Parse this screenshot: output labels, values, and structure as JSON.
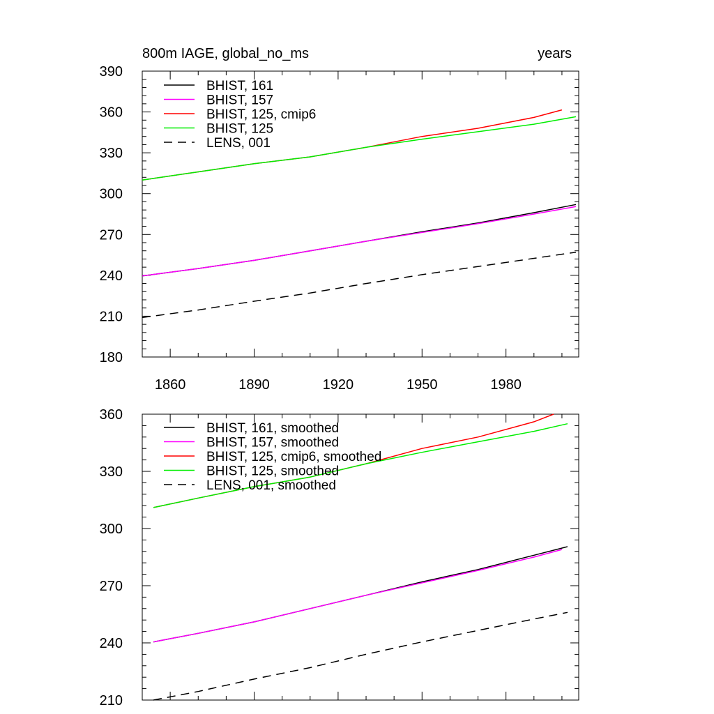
{
  "title_left": "800m IAGE, global_no_ms",
  "title_right": "years",
  "chart_data": [
    {
      "type": "line",
      "title": "800m IAGE, global_no_ms",
      "units": "years",
      "xlim": [
        1850,
        2006
      ],
      "ylim": [
        180,
        390
      ],
      "xticks": [
        1860,
        1890,
        1920,
        1950,
        1980
      ],
      "yticks": [
        180,
        210,
        240,
        270,
        300,
        330,
        360,
        390
      ],
      "x_tick_labels_shown": true,
      "legend_position": "top-left",
      "series": [
        {
          "name": "BHIST, 161",
          "color": "#000000",
          "dash": "solid",
          "x": [
            1850,
            1870,
            1890,
            1910,
            1930,
            1950,
            1970,
            1990,
            2005
          ],
          "values": [
            239.5,
            245,
            251,
            258,
            265,
            272,
            278.5,
            286,
            292
          ]
        },
        {
          "name": "BHIST, 157",
          "color": "#ff00ff",
          "dash": "solid",
          "x": [
            1850,
            1870,
            1890,
            1910,
            1930,
            1950,
            1970,
            1990,
            2005
          ],
          "values": [
            239.5,
            245,
            251,
            258,
            265,
            271.5,
            278,
            285,
            290.5
          ]
        },
        {
          "name": "BHIST, 125, cmip6",
          "color": "#ff0000",
          "dash": "solid",
          "x": [
            1850,
            1870,
            1890,
            1910,
            1930,
            1950,
            1970,
            1990,
            2000
          ],
          "values": [
            310,
            316,
            322,
            327,
            334,
            342,
            348,
            356,
            361.5
          ]
        },
        {
          "name": "BHIST, 125",
          "color": "#00ee00",
          "dash": "solid",
          "x": [
            1850,
            1870,
            1890,
            1910,
            1930,
            1950,
            1970,
            1990,
            2005
          ],
          "values": [
            310,
            316,
            322,
            327,
            334,
            340,
            345.5,
            351,
            356.5
          ]
        },
        {
          "name": "LENS, 001",
          "color": "#000000",
          "dash": "dashed",
          "x": [
            1850,
            1870,
            1890,
            1910,
            1930,
            1950,
            1970,
            1990,
            2005
          ],
          "values": [
            209,
            214.5,
            221,
            227,
            234,
            240.5,
            246.5,
            252.5,
            257
          ]
        }
      ]
    },
    {
      "type": "line",
      "title": "",
      "units": "",
      "xlim": [
        1850,
        2006
      ],
      "ylim": [
        210,
        360
      ],
      "xticks": [
        1860,
        1890,
        1920,
        1950,
        1980
      ],
      "yticks": [
        210,
        240,
        270,
        300,
        330,
        360
      ],
      "x_tick_labels_shown": false,
      "legend_position": "top-left",
      "series": [
        {
          "name": "BHIST, 161, smoothed",
          "color": "#000000",
          "dash": "solid",
          "x": [
            1854,
            1870,
            1890,
            1910,
            1930,
            1950,
            1970,
            1990,
            2002
          ],
          "values": [
            240.5,
            245,
            251,
            258,
            265,
            272,
            278.5,
            286,
            290.5
          ]
        },
        {
          "name": "BHIST, 157, smoothed",
          "color": "#ff00ff",
          "dash": "solid",
          "x": [
            1854,
            1870,
            1890,
            1910,
            1930,
            1950,
            1970,
            1990,
            2000
          ],
          "values": [
            240.5,
            245,
            251,
            258,
            265,
            271.5,
            278,
            285,
            289
          ]
        },
        {
          "name": "BHIST, 125, cmip6, smoothed",
          "color": "#ff0000",
          "dash": "solid",
          "x": [
            1854,
            1870,
            1890,
            1910,
            1930,
            1950,
            1970,
            1990,
            1997
          ],
          "values": [
            311,
            316,
            322,
            327,
            334,
            342,
            348,
            356,
            360
          ]
        },
        {
          "name": "BHIST, 125, smoothed",
          "color": "#00ee00",
          "dash": "solid",
          "x": [
            1854,
            1870,
            1890,
            1910,
            1930,
            1950,
            1970,
            1990,
            2002
          ],
          "values": [
            311,
            316,
            322,
            327,
            334,
            340,
            345.5,
            351,
            355
          ]
        },
        {
          "name": "LENS, 001, smoothed",
          "color": "#000000",
          "dash": "dashed",
          "x": [
            1854,
            1870,
            1890,
            1910,
            1930,
            1950,
            1970,
            1990,
            2002
          ],
          "values": [
            210,
            214.5,
            221,
            227,
            234,
            240.5,
            246.5,
            252.5,
            256
          ]
        }
      ]
    }
  ]
}
